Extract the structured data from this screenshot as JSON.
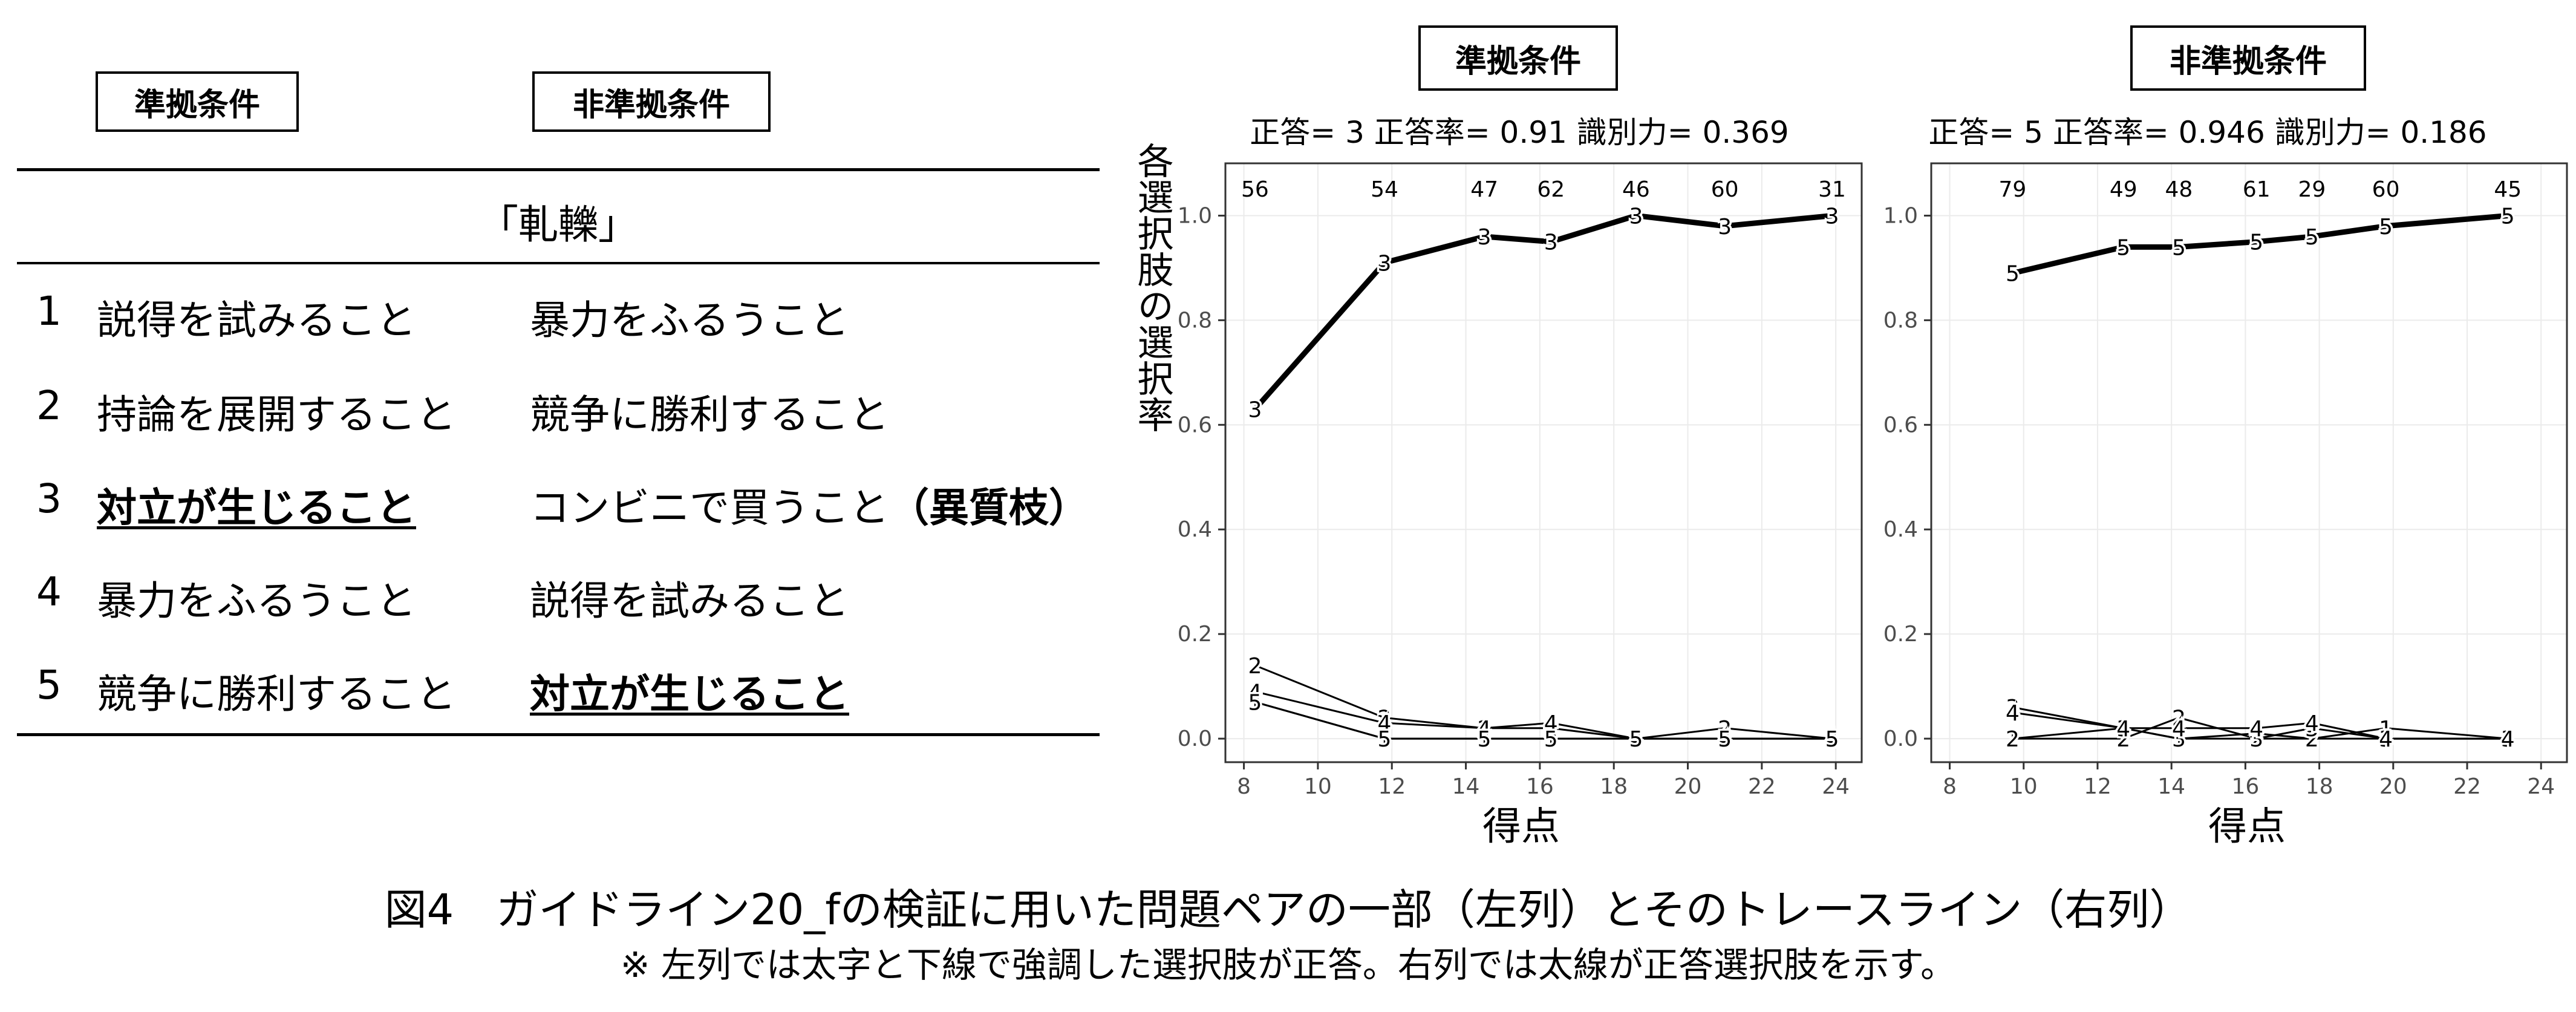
{
  "table": {
    "header_left": "準拠条件",
    "header_right": "非準拠条件",
    "stem": "「軋轢」",
    "rows": [
      {
        "no": "1",
        "left": "説得を試みること",
        "right": "暴力をふるうこと"
      },
      {
        "no": "2",
        "left": "持論を展開すること",
        "right": "競争に勝利すること"
      },
      {
        "no": "3",
        "left": "対立が生じること",
        "right": "コンビニで買うこと",
        "right_note": "（異質枝）"
      },
      {
        "no": "4",
        "left": "暴力をふるうこと",
        "right": "説得を試みること"
      },
      {
        "no": "5",
        "left": "競争に勝利すること",
        "right": "対立が生じること"
      }
    ]
  },
  "chart_data": [
    {
      "type": "line",
      "header": "準拠条件",
      "title": "正答= 3 正答率= 0.91 識別力= 0.369",
      "xlabel": "得点",
      "ylabel": "各選択肢の選択率",
      "xlim": [
        7.5,
        24.7
      ],
      "ylim": [
        -0.045,
        1.1
      ],
      "xticks": [
        8,
        10,
        12,
        14,
        16,
        18,
        20,
        22,
        24
      ],
      "yticks": [
        0.0,
        0.2,
        0.4,
        0.6,
        0.8,
        1.0
      ],
      "ytick_labels": [
        "0.0",
        "0.2",
        "0.4",
        "0.6",
        "0.8",
        "1.0"
      ],
      "grid": true,
      "counts": [
        {
          "x": 8.3,
          "label": "56"
        },
        {
          "x": 11.8,
          "label": "54"
        },
        {
          "x": 14.5,
          "label": "47"
        },
        {
          "x": 16.3,
          "label": "62"
        },
        {
          "x": 18.6,
          "label": "46"
        },
        {
          "x": 21.0,
          "label": "60"
        },
        {
          "x": 23.9,
          "label": "31"
        }
      ],
      "series": [
        {
          "name": "1",
          "correct": false,
          "points": [
            [
              8.3,
              0.07
            ],
            [
              11.8,
              0.0
            ],
            [
              14.5,
              0.0
            ],
            [
              16.3,
              0.0
            ],
            [
              18.6,
              0.0
            ],
            [
              21.0,
              0.0
            ],
            [
              23.9,
              0.0
            ]
          ]
        },
        {
          "name": "2",
          "correct": false,
          "points": [
            [
              8.3,
              0.14
            ],
            [
              11.8,
              0.04
            ],
            [
              14.5,
              0.02
            ],
            [
              16.3,
              0.02
            ],
            [
              18.6,
              0.0
            ],
            [
              21.0,
              0.02
            ],
            [
              23.9,
              0.0
            ]
          ]
        },
        {
          "name": "3",
          "correct": true,
          "points": [
            [
              8.3,
              0.63
            ],
            [
              11.8,
              0.91
            ],
            [
              14.5,
              0.96
            ],
            [
              16.3,
              0.95
            ],
            [
              18.6,
              1.0
            ],
            [
              21.0,
              0.98
            ],
            [
              23.9,
              1.0
            ]
          ]
        },
        {
          "name": "4",
          "correct": false,
          "points": [
            [
              8.3,
              0.09
            ],
            [
              11.8,
              0.03
            ],
            [
              14.5,
              0.02
            ],
            [
              16.3,
              0.03
            ],
            [
              18.6,
              0.0
            ],
            [
              21.0,
              0.0
            ],
            [
              23.9,
              0.0
            ]
          ]
        },
        {
          "name": "5",
          "correct": false,
          "points": [
            [
              8.3,
              0.07
            ],
            [
              11.8,
              0.0
            ],
            [
              14.5,
              0.0
            ],
            [
              16.3,
              0.0
            ],
            [
              18.6,
              0.0
            ],
            [
              21.0,
              0.0
            ],
            [
              23.9,
              0.0
            ]
          ]
        }
      ]
    },
    {
      "type": "line",
      "header": "非準拠条件",
      "title": "正答= 5 正答率= 0.946 識別力= 0.186",
      "xlabel": "得点",
      "ylabel": "",
      "xlim": [
        7.5,
        24.7
      ],
      "ylim": [
        -0.045,
        1.1
      ],
      "xticks": [
        8,
        10,
        12,
        14,
        16,
        18,
        20,
        22,
        24
      ],
      "yticks": [
        0.0,
        0.2,
        0.4,
        0.6,
        0.8,
        1.0
      ],
      "ytick_labels": [
        "0.0",
        "0.2",
        "0.4",
        "0.6",
        "0.8",
        "1.0"
      ],
      "grid": true,
      "counts": [
        {
          "x": 9.7,
          "label": "79"
        },
        {
          "x": 12.7,
          "label": "49"
        },
        {
          "x": 14.2,
          "label": "48"
        },
        {
          "x": 16.3,
          "label": "61"
        },
        {
          "x": 17.8,
          "label": "29"
        },
        {
          "x": 19.8,
          "label": "60"
        },
        {
          "x": 23.1,
          "label": "45"
        }
      ],
      "series": [
        {
          "name": "1",
          "correct": false,
          "points": [
            [
              9.7,
              0.0
            ],
            [
              12.7,
              0.02
            ],
            [
              14.2,
              0.0
            ],
            [
              16.3,
              0.01
            ],
            [
              17.8,
              0.0
            ],
            [
              19.8,
              0.02
            ],
            [
              23.1,
              0.0
            ]
          ]
        },
        {
          "name": "2",
          "correct": false,
          "points": [
            [
              9.7,
              0.0
            ],
            [
              12.7,
              0.0
            ],
            [
              14.2,
              0.04
            ],
            [
              16.3,
              0.0
            ],
            [
              17.8,
              0.0
            ],
            [
              19.8,
              0.0
            ],
            [
              23.1,
              0.0
            ]
          ]
        },
        {
          "name": "3",
          "correct": false,
          "points": [
            [
              9.7,
              0.06
            ],
            [
              12.7,
              0.02
            ],
            [
              14.2,
              0.0
            ],
            [
              16.3,
              0.0
            ],
            [
              17.8,
              0.02
            ],
            [
              19.8,
              0.0
            ],
            [
              23.1,
              0.0
            ]
          ]
        },
        {
          "name": "4",
          "correct": false,
          "points": [
            [
              9.7,
              0.05
            ],
            [
              12.7,
              0.02
            ],
            [
              14.2,
              0.02
            ],
            [
              16.3,
              0.02
            ],
            [
              17.8,
              0.03
            ],
            [
              19.8,
              0.0
            ],
            [
              23.1,
              0.0
            ]
          ]
        },
        {
          "name": "5",
          "correct": true,
          "points": [
            [
              9.7,
              0.89
            ],
            [
              12.7,
              0.94
            ],
            [
              14.2,
              0.94
            ],
            [
              16.3,
              0.95
            ],
            [
              17.8,
              0.96
            ],
            [
              19.8,
              0.98
            ],
            [
              23.1,
              1.0
            ]
          ]
        }
      ]
    }
  ],
  "caption": "図4　ガイドライン20_fの検証に用いた問題ペアの一部（左列）とそのトレースライン（右列）",
  "subcaption": "※ 左列では太字と下線で強調した選択肢が正答。右列では太線が正答選択肢を示す。"
}
